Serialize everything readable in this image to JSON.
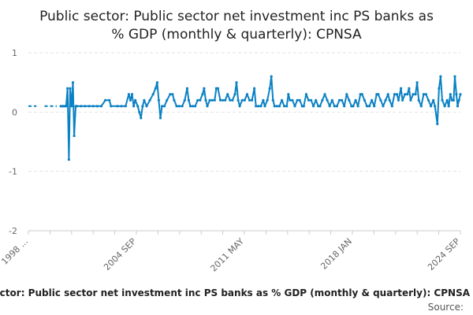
{
  "page": {
    "title_line1": "Public sector: Public sector net investment inc PS banks as",
    "title_line2": "% GDP (monthly & quarterly): CPNSA",
    "footer_title": "Public sector: Public sector net investment inc PS banks as % GDP (monthly & quarterly): CPNSA",
    "source_label": "Source:"
  },
  "colors": {
    "series": "#0a81c4",
    "grid": "#e2e2e2",
    "text": "#222222",
    "ticks": "#666666"
  },
  "chart_data": {
    "type": "line",
    "title": "Public sector: Public sector net investment inc PS banks as % GDP (monthly & quarterly): CPNSA",
    "xlabel": "",
    "ylabel": "",
    "x_range": [
      "1998 Q1",
      "2024 SEP"
    ],
    "ylim": [
      -2,
      1
    ],
    "y_ticks": [
      1,
      0,
      -1,
      -2
    ],
    "x_ticks": [
      "1998 ...",
      "2004 SEP",
      "2011 MAY",
      "2018 JAN",
      "2024 SEP"
    ],
    "grid": true,
    "legend": "none",
    "early_quarterly_dashed": [
      {
        "x": 1998.0,
        "y": 0.1
      },
      {
        "x": 1998.25,
        "y": 0.1
      },
      {
        "x": 1998.5,
        "y": 0.1
      },
      {
        "x": 1999.0,
        "y": 0.1
      },
      {
        "x": 1999.25,
        "y": 0.1
      },
      {
        "x": 1999.5,
        "y": 0.1
      },
      {
        "x": 1999.75,
        "y": 0.1
      }
    ],
    "series": [
      {
        "values_monthly_from": "2000 JAN",
        "points": [
          [
            2000.0,
            0.1
          ],
          [
            2000.08,
            0.1
          ],
          [
            2000.17,
            0.1
          ],
          [
            2000.25,
            0.1
          ],
          [
            2000.33,
            0.1
          ],
          [
            2000.42,
            0.4
          ],
          [
            2000.5,
            -0.8
          ],
          [
            2000.58,
            0.4
          ],
          [
            2000.67,
            0.1
          ],
          [
            2000.75,
            0.5
          ],
          [
            2000.83,
            -0.4
          ],
          [
            2000.92,
            0.1
          ],
          [
            2001.0,
            0.1
          ],
          [
            2001.25,
            0.1
          ],
          [
            2001.5,
            0.1
          ],
          [
            2001.75,
            0.1
          ],
          [
            2002.0,
            0.1
          ],
          [
            2002.25,
            0.1
          ],
          [
            2002.5,
            0.1
          ],
          [
            2002.75,
            0.2
          ],
          [
            2003.0,
            0.2
          ],
          [
            2003.1,
            0.1
          ],
          [
            2003.5,
            0.1
          ],
          [
            2003.75,
            0.1
          ],
          [
            2004.0,
            0.1
          ],
          [
            2004.2,
            0.3
          ],
          [
            2004.3,
            0.2
          ],
          [
            2004.4,
            0.3
          ],
          [
            2004.5,
            0.1
          ],
          [
            2004.6,
            0.2
          ],
          [
            2004.75,
            0.1
          ],
          [
            2004.85,
            0.0
          ],
          [
            2004.95,
            -0.1
          ],
          [
            2005.05,
            0.1
          ],
          [
            2005.15,
            0.2
          ],
          [
            2005.3,
            0.1
          ],
          [
            2005.5,
            0.2
          ],
          [
            2005.7,
            0.3
          ],
          [
            2005.85,
            0.4
          ],
          [
            2005.95,
            0.5
          ],
          [
            2006.05,
            0.2
          ],
          [
            2006.15,
            -0.1
          ],
          [
            2006.25,
            0.1
          ],
          [
            2006.4,
            0.1
          ],
          [
            2006.55,
            0.2
          ],
          [
            2006.75,
            0.3
          ],
          [
            2006.9,
            0.3
          ],
          [
            2007.0,
            0.2
          ],
          [
            2007.15,
            0.1
          ],
          [
            2007.3,
            0.1
          ],
          [
            2007.5,
            0.1
          ],
          [
            2007.65,
            0.2
          ],
          [
            2007.8,
            0.4
          ],
          [
            2007.9,
            0.2
          ],
          [
            2008.0,
            0.1
          ],
          [
            2008.15,
            0.1
          ],
          [
            2008.3,
            0.1
          ],
          [
            2008.45,
            0.2
          ],
          [
            2008.6,
            0.2
          ],
          [
            2008.75,
            0.3
          ],
          [
            2008.85,
            0.4
          ],
          [
            2008.95,
            0.2
          ],
          [
            2009.05,
            0.1
          ],
          [
            2009.2,
            0.2
          ],
          [
            2009.35,
            0.2
          ],
          [
            2009.5,
            0.2
          ],
          [
            2009.6,
            0.4
          ],
          [
            2009.7,
            0.4
          ],
          [
            2009.85,
            0.2
          ],
          [
            2010.0,
            0.2
          ],
          [
            2010.15,
            0.2
          ],
          [
            2010.3,
            0.3
          ],
          [
            2010.45,
            0.2
          ],
          [
            2010.6,
            0.2
          ],
          [
            2010.75,
            0.3
          ],
          [
            2010.85,
            0.5
          ],
          [
            2010.95,
            0.2
          ],
          [
            2011.05,
            0.1
          ],
          [
            2011.2,
            0.2
          ],
          [
            2011.35,
            0.2
          ],
          [
            2011.5,
            0.3
          ],
          [
            2011.65,
            0.2
          ],
          [
            2011.8,
            0.2
          ],
          [
            2011.95,
            0.4
          ],
          [
            2012.05,
            0.1
          ],
          [
            2012.2,
            0.1
          ],
          [
            2012.35,
            0.1
          ],
          [
            2012.5,
            0.2
          ],
          [
            2012.6,
            0.1
          ],
          [
            2012.75,
            0.2
          ],
          [
            2012.9,
            0.4
          ],
          [
            2013.0,
            0.6
          ],
          [
            2013.1,
            0.2
          ],
          [
            2013.2,
            0.1
          ],
          [
            2013.35,
            0.1
          ],
          [
            2013.5,
            0.1
          ],
          [
            2013.65,
            0.2
          ],
          [
            2013.8,
            0.1
          ],
          [
            2013.95,
            0.1
          ],
          [
            2014.05,
            0.3
          ],
          [
            2014.15,
            0.2
          ],
          [
            2014.3,
            0.2
          ],
          [
            2014.45,
            0.1
          ],
          [
            2014.6,
            0.2
          ],
          [
            2014.75,
            0.2
          ],
          [
            2014.9,
            0.1
          ],
          [
            2015.0,
            0.1
          ],
          [
            2015.15,
            0.3
          ],
          [
            2015.3,
            0.2
          ],
          [
            2015.45,
            0.2
          ],
          [
            2015.6,
            0.1
          ],
          [
            2015.75,
            0.2
          ],
          [
            2015.9,
            0.1
          ],
          [
            2016.0,
            0.1
          ],
          [
            2016.15,
            0.2
          ],
          [
            2016.3,
            0.3
          ],
          [
            2016.45,
            0.2
          ],
          [
            2016.6,
            0.1
          ],
          [
            2016.75,
            0.2
          ],
          [
            2016.9,
            0.1
          ],
          [
            2017.05,
            0.1
          ],
          [
            2017.2,
            0.2
          ],
          [
            2017.35,
            0.2
          ],
          [
            2017.5,
            0.1
          ],
          [
            2017.65,
            0.3
          ],
          [
            2017.8,
            0.2
          ],
          [
            2017.95,
            0.1
          ],
          [
            2018.05,
            0.1
          ],
          [
            2018.2,
            0.2
          ],
          [
            2018.35,
            0.1
          ],
          [
            2018.5,
            0.3
          ],
          [
            2018.6,
            0.3
          ],
          [
            2018.75,
            0.2
          ],
          [
            2018.9,
            0.1
          ],
          [
            2019.05,
            0.1
          ],
          [
            2019.2,
            0.2
          ],
          [
            2019.35,
            0.1
          ],
          [
            2019.5,
            0.3
          ],
          [
            2019.6,
            0.3
          ],
          [
            2019.75,
            0.2
          ],
          [
            2019.9,
            0.1
          ],
          [
            2020.05,
            0.2
          ],
          [
            2020.2,
            0.3
          ],
          [
            2020.3,
            0.2
          ],
          [
            2020.45,
            0.1
          ],
          [
            2020.6,
            0.3
          ],
          [
            2020.75,
            0.3
          ],
          [
            2020.85,
            0.2
          ],
          [
            2021.0,
            0.4
          ],
          [
            2021.1,
            0.2
          ],
          [
            2021.25,
            0.3
          ],
          [
            2021.4,
            0.3
          ],
          [
            2021.5,
            0.4
          ],
          [
            2021.6,
            0.2
          ],
          [
            2021.75,
            0.3
          ],
          [
            2021.9,
            0.3
          ],
          [
            2022.0,
            0.5
          ],
          [
            2022.1,
            0.2
          ],
          [
            2022.25,
            0.1
          ],
          [
            2022.4,
            0.3
          ],
          [
            2022.55,
            0.3
          ],
          [
            2022.7,
            0.2
          ],
          [
            2022.85,
            0.1
          ],
          [
            2023.0,
            0.2
          ],
          [
            2023.1,
            0.1
          ],
          [
            2023.25,
            -0.2
          ],
          [
            2023.35,
            0.4
          ],
          [
            2023.45,
            0.6
          ],
          [
            2023.55,
            0.2
          ],
          [
            2023.7,
            0.1
          ],
          [
            2023.85,
            0.2
          ],
          [
            2023.95,
            0.1
          ],
          [
            2024.05,
            0.3
          ],
          [
            2024.15,
            0.2
          ],
          [
            2024.25,
            0.2
          ],
          [
            2024.33,
            0.6
          ],
          [
            2024.42,
            0.3
          ],
          [
            2024.5,
            0.1
          ],
          [
            2024.58,
            0.2
          ],
          [
            2024.67,
            0.3
          ]
        ]
      }
    ]
  }
}
